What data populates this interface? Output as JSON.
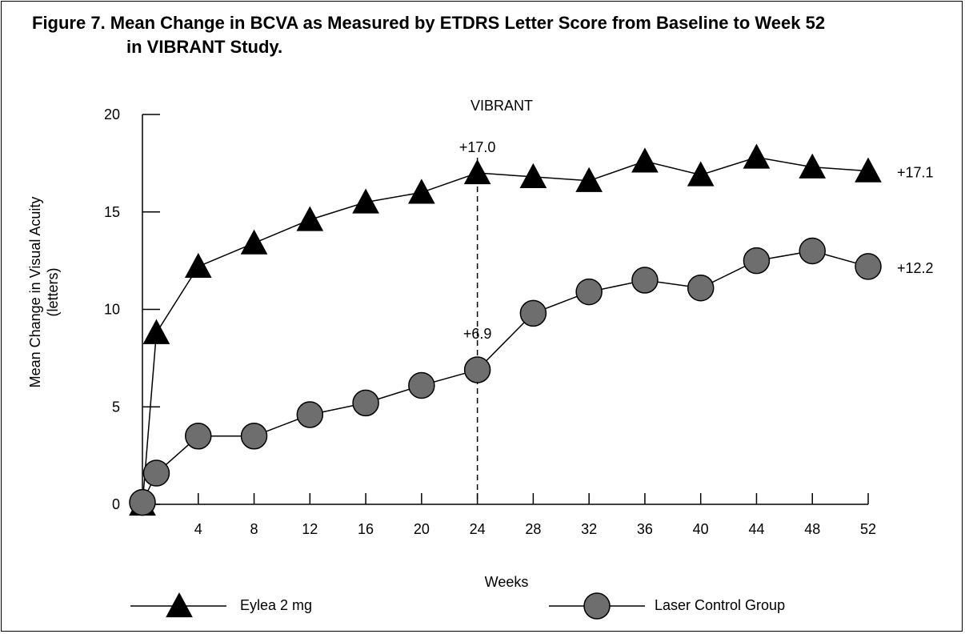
{
  "figure": {
    "title_line1": "Figure 7. Mean Change in BCVA as Measured by ETDRS Letter Score from Baseline to Week 52",
    "title_line2": "in VIBRANT Study."
  },
  "chart_data": {
    "type": "line",
    "title": "VIBRANT",
    "xlabel": "Weeks",
    "ylabel": "Mean Change in Visual Acuity",
    "ylabel_line2": "(letters)",
    "xlim": [
      0,
      52
    ],
    "ylim": [
      0,
      20
    ],
    "x_ticks": [
      4,
      8,
      12,
      16,
      20,
      24,
      28,
      32,
      36,
      40,
      44,
      48,
      52
    ],
    "y_ticks": [
      0,
      5,
      10,
      15,
      20
    ],
    "grid": false,
    "legend_position": "bottom",
    "reference_line_x": 24,
    "series": [
      {
        "name": "Eylea 2 mg",
        "marker": "triangle",
        "color": "#000000",
        "x": [
          0,
          1,
          4,
          8,
          12,
          16,
          20,
          24,
          28,
          32,
          36,
          40,
          44,
          48,
          52
        ],
        "y": [
          0.0,
          8.8,
          12.2,
          13.4,
          14.6,
          15.5,
          16.0,
          17.0,
          16.8,
          16.6,
          17.6,
          16.9,
          17.8,
          17.3,
          17.1
        ]
      },
      {
        "name": "Laser Control Group",
        "marker": "circle",
        "color": "#6e6e6e",
        "x": [
          0,
          1,
          4,
          8,
          12,
          16,
          20,
          24,
          28,
          32,
          36,
          40,
          44,
          48,
          52
        ],
        "y": [
          0.1,
          1.6,
          3.5,
          3.5,
          4.6,
          5.2,
          6.1,
          6.9,
          9.8,
          10.9,
          11.5,
          11.1,
          12.5,
          13.0,
          12.2
        ]
      }
    ],
    "annotations": [
      {
        "text": "+17.0",
        "x": 24,
        "y": 17.0,
        "series": 0
      },
      {
        "text": "+6.9",
        "x": 24,
        "y": 6.9,
        "series": 1
      },
      {
        "text": "+17.1",
        "x": 52,
        "y": 17.1,
        "series": 0
      },
      {
        "text": "+12.2",
        "x": 52,
        "y": 12.2,
        "series": 1
      }
    ]
  }
}
